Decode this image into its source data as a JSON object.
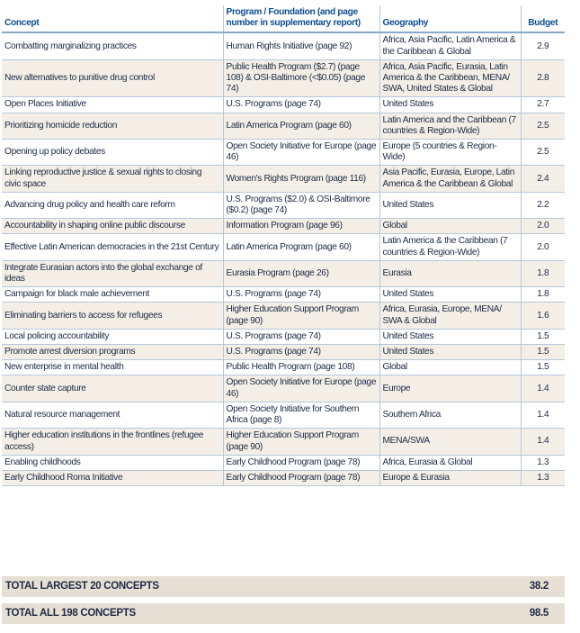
{
  "headers": {
    "concept": "Concept",
    "program_line1": "Program / Foundation (and page",
    "program_line2": "number in supplementary report)",
    "geography": "Geography",
    "budget": "Budget"
  },
  "rows": [
    {
      "concept": "Combatting marginalizing practices",
      "program": "Human Rights Initiative (page 92)",
      "geography": "Africa, Asia Pacific, Latin America & the Caribbean & Global",
      "budget": "2.9"
    },
    {
      "concept": "New alternatives to punitive drug control",
      "program": "Public Health Program ($2.7) (page 108) & OSI-Baltimore (<$0.05) (page 74)",
      "geography": "Africa, Asia Pacific, Eurasia, Latin America & the Caribbean, MENA/ SWA, United States & Global",
      "budget": "2.8"
    },
    {
      "concept": "Open Places Initiative",
      "program": "U.S. Programs (page 74)",
      "geography": "United States",
      "budget": "2.7"
    },
    {
      "concept": "Prioritizing homicide reduction",
      "program": "Latin America Program (page 60)",
      "geography": "Latin America and the Caribbean (7 countries & Region-Wide)",
      "budget": "2.5"
    },
    {
      "concept": "Opening up policy debates",
      "program": "Open Society Initiative for Europe (page 46)",
      "geography": "Europe (5 countries & Region-Wide)",
      "budget": "2.5"
    },
    {
      "concept": "Linking reproductive justice & sexual rights to closing civic space",
      "program": "Women's Rights Program (page 116)",
      "geography": "Asia Pacific, Eurasia, Europe, Latin America & the Caribbean & Global",
      "budget": "2.4"
    },
    {
      "concept": "Advancing drug policy and health care reform",
      "program": "U.S. Programs ($2.0) & OSI-Baltimore ($0.2) (page 74)",
      "geography": "United States",
      "budget": "2.2"
    },
    {
      "concept": "Accountability in shaping online public discourse",
      "program": "Information Program (page 96)",
      "geography": "Global",
      "budget": "2.0"
    },
    {
      "concept": "Effective Latin American democracies in the 21st Century",
      "program": "Latin America Program (page 60)",
      "geography": "Latin America & the Caribbean (7 countries & Region-Wide)",
      "budget": "2.0"
    },
    {
      "concept": "Integrate Eurasian actors into the global exchange of ideas",
      "program": "Eurasia Program (page 26)",
      "geography": "Eurasia",
      "budget": "1.8"
    },
    {
      "concept": "Campaign for black male achievement",
      "program": "U.S. Programs (page 74)",
      "geography": "United States",
      "budget": "1.8"
    },
    {
      "concept": "Eliminating barriers to access for refugees",
      "program": "Higher Education Support Program (page 90)",
      "geography": "Africa, Eurasia, Europe, MENA/ SWA & Global",
      "budget": "1.6"
    },
    {
      "concept": "Local policing accountability",
      "program": "U.S. Programs (page 74)",
      "geography": "United States",
      "budget": "1.5"
    },
    {
      "concept": "Promote arrest diversion programs",
      "program": "U.S. Programs (page 74)",
      "geography": "United States",
      "budget": "1.5"
    },
    {
      "concept": "New enterprise in mental health",
      "program": "Public Health Program (page 108)",
      "geography": "Global",
      "budget": "1.5"
    },
    {
      "concept": "Counter state capture",
      "program": "Open Society Initiative for Europe (page 46)",
      "geography": "Europe",
      "budget": "1.4"
    },
    {
      "concept": "Natural resource management",
      "program": "Open Society Initiative for Southern Africa (page 8)",
      "geography": "Southern Africa",
      "budget": "1.4"
    },
    {
      "concept": "Higher education institutions in the frontlines (refugee access)",
      "program": "Higher Education Support Program (page 90)",
      "geography": "MENA/SWA",
      "budget": "1.4"
    },
    {
      "concept": "Enabling childhoods",
      "program": "Early Childhood Program (page 78)",
      "geography": "Africa, Eurasia & Global",
      "budget": "1.3"
    },
    {
      "concept": "Early Childhood Roma Initiative",
      "program": "Early Childhood Program (page 78)",
      "geography": "Europe & Eurasia",
      "budget": "1.3"
    }
  ],
  "totals": [
    {
      "label": "TOTAL LARGEST 20 CONCEPTS",
      "value": "38.2"
    },
    {
      "label": "TOTAL ALL 198 CONCEPTS",
      "value": "98.5"
    }
  ]
}
